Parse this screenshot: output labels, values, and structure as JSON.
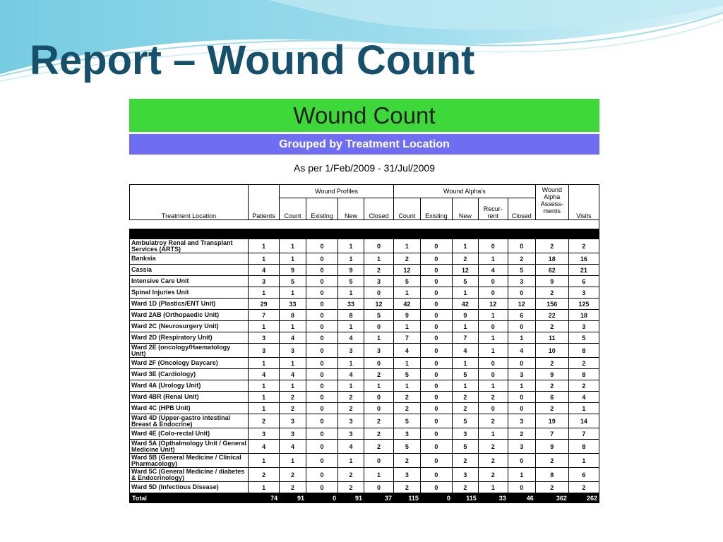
{
  "slide_title": "Report – Wound Count",
  "report_title": "Wound Count",
  "report_subtitle": "Grouped by Treatment Location",
  "date_range": "As per 1/Feb/2009 - 31/Jul/2009",
  "group_headers": {
    "wound_profiles": "Wound Profiles",
    "wound_alphas": "Wound Alpha's",
    "wound_alpha_assessments": "Wound Alpha Assess-ments"
  },
  "columns": {
    "location": "Treatment Location",
    "patients": "Patients",
    "wp_count": "Count",
    "wp_existing": "Existing",
    "wp_new": "New",
    "wp_closed": "Closed",
    "wa_count": "Count",
    "wa_existing": "Existing",
    "wa_new": "New",
    "wa_recurrent": "Recur-rent",
    "wa_closed": "Closed",
    "assessments": "",
    "visits": "Visits"
  },
  "rows": [
    [
      "Ambulatroy Renal and Transplant Services (ARTS)",
      "1",
      "1",
      "0",
      "1",
      "0",
      "1",
      "0",
      "1",
      "0",
      "0",
      "2",
      "2"
    ],
    [
      "Banksia",
      "1",
      "1",
      "0",
      "1",
      "1",
      "2",
      "0",
      "2",
      "1",
      "2",
      "18",
      "16"
    ],
    [
      "Cassia",
      "4",
      "9",
      "0",
      "9",
      "2",
      "12",
      "0",
      "12",
      "4",
      "5",
      "62",
      "21"
    ],
    [
      "Intensive Care Unit",
      "3",
      "5",
      "0",
      "5",
      "3",
      "5",
      "0",
      "5",
      "0",
      "3",
      "9",
      "6"
    ],
    [
      "Spinal Injuries Unit",
      "1",
      "1",
      "0",
      "1",
      "0",
      "1",
      "0",
      "1",
      "0",
      "0",
      "2",
      "3"
    ],
    [
      "Ward 1D (Plastics/ENT Unit)",
      "29",
      "33",
      "0",
      "33",
      "12",
      "42",
      "0",
      "42",
      "12",
      "12",
      "156",
      "125"
    ],
    [
      "Ward 2AB (Orthopaedic Unit)",
      "7",
      "8",
      "0",
      "8",
      "5",
      "9",
      "0",
      "9",
      "1",
      "6",
      "22",
      "18"
    ],
    [
      "Ward 2C (Neurosurgery Unit)",
      "1",
      "1",
      "0",
      "1",
      "0",
      "1",
      "0",
      "1",
      "0",
      "0",
      "2",
      "3"
    ],
    [
      "Ward 2D (Respiratory Unit)",
      "3",
      "4",
      "0",
      "4",
      "1",
      "7",
      "0",
      "7",
      "1",
      "1",
      "11",
      "5"
    ],
    [
      "Ward 2E (oncology/Haematology Unit)",
      "3",
      "3",
      "0",
      "3",
      "3",
      "4",
      "0",
      "4",
      "1",
      "4",
      "10",
      "8"
    ],
    [
      "Ward 2F (Oncology Daycare)",
      "1",
      "1",
      "0",
      "1",
      "0",
      "1",
      "0",
      "1",
      "0",
      "0",
      "2",
      "2"
    ],
    [
      "Ward 3E (Cardiology)",
      "4",
      "4",
      "0",
      "4",
      "2",
      "5",
      "0",
      "5",
      "0",
      "3",
      "9",
      "8"
    ],
    [
      "Ward 4A (Urology Unit)",
      "1",
      "1",
      "0",
      "1",
      "1",
      "1",
      "0",
      "1",
      "1",
      "1",
      "2",
      "2"
    ],
    [
      "Ward 4BR (Renal Unit)",
      "1",
      "2",
      "0",
      "2",
      "0",
      "2",
      "0",
      "2",
      "2",
      "0",
      "6",
      "4"
    ],
    [
      "Ward 4C (HPB Unit)",
      "1",
      "2",
      "0",
      "2",
      "0",
      "2",
      "0",
      "2",
      "0",
      "0",
      "2",
      "1"
    ],
    [
      "Ward 4D (Upper-gastro intestinal Breast & Endocrine)",
      "2",
      "3",
      "0",
      "3",
      "2",
      "5",
      "0",
      "5",
      "2",
      "3",
      "19",
      "14"
    ],
    [
      "Ward 4E (Colo-rectal Unit)",
      "3",
      "3",
      "0",
      "3",
      "2",
      "3",
      "0",
      "3",
      "1",
      "2",
      "7",
      "7"
    ],
    [
      "Ward 5A (Opthalmology Unit / General Medicine Unit)",
      "4",
      "4",
      "0",
      "4",
      "2",
      "5",
      "0",
      "5",
      "2",
      "3",
      "9",
      "8"
    ],
    [
      "Ward 5B (General Medicine / Clinical Pharmacology)",
      "1",
      "1",
      "0",
      "1",
      "0",
      "2",
      "0",
      "2",
      "2",
      "0",
      "2",
      "1"
    ],
    [
      "Ward 5C (General Medicine / diabetes & Endocrinology)",
      "2",
      "2",
      "0",
      "2",
      "1",
      "3",
      "0",
      "3",
      "2",
      "1",
      "8",
      "6"
    ],
    [
      "Ward 5D (Infectious Disease)",
      "1",
      "2",
      "0",
      "2",
      "0",
      "2",
      "0",
      "2",
      "1",
      "0",
      "2",
      "2"
    ]
  ],
  "tall_rows": [
    0,
    9,
    15,
    17,
    18,
    19
  ],
  "total": [
    "Total",
    "74",
    "91",
    "0",
    "91",
    "37",
    "115",
    "0",
    "115",
    "33",
    "46",
    "362",
    "262"
  ],
  "colors": {
    "title": "#17506a",
    "banner_green": "#3fd83a",
    "banner_blue": "#6f6ef2"
  }
}
